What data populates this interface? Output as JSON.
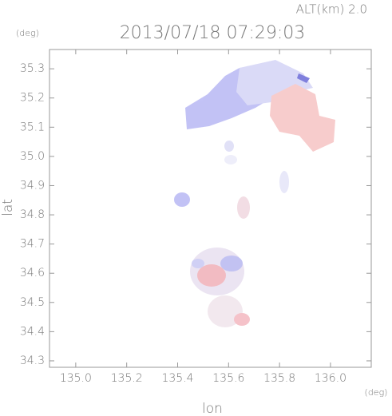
{
  "chart_data": {
    "type": "map",
    "title": "2013/07/18 07:29:03",
    "altitude_label": "ALT(km) 2.0",
    "x_unit": "(deg)",
    "y_unit": "(deg)",
    "xlabel": "lon",
    "ylabel": "lat",
    "xlim": [
      134.897,
      136.16
    ],
    "ylim": [
      34.278,
      35.366
    ],
    "xticks": [
      {
        "value": 135,
        "label": "135.0"
      },
      135.2,
      135.4,
      135.6,
      135.8,
      {
        "value": 136,
        "label": "136.0"
      }
    ],
    "yticks": [
      34.3,
      34.4,
      34.5,
      34.6,
      34.7,
      34.8,
      34.9,
      {
        "value": 35,
        "label": "35.0"
      },
      35.1,
      35.2,
      35.3
    ]
  }
}
